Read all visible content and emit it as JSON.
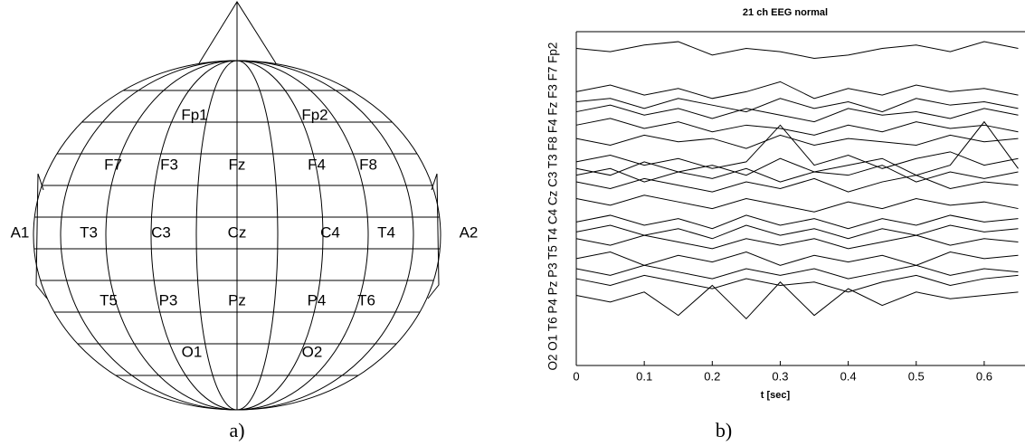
{
  "diagram": {
    "electrodes": [
      "Fp1",
      "Fp2",
      "F7",
      "F3",
      "Fz",
      "F4",
      "F8",
      "A1",
      "T3",
      "C3",
      "Cz",
      "C4",
      "T4",
      "A2",
      "T5",
      "P3",
      "Pz",
      "P4",
      "T6",
      "O1",
      "O2"
    ]
  },
  "captions": [
    "a)",
    "b)"
  ],
  "chart_data": {
    "type": "line",
    "title": "21 ch EEG normal",
    "x_label": "t [sec]",
    "y_label": "O2 O1 T6 P4 Pz P3 T5 T4 C4 Cz C3 T3 F8 F4 Fz F3 F7 Fp2",
    "color": "#000000",
    "x": [
      0,
      0.05,
      0.1,
      0.15,
      0.2,
      0.25,
      0.3,
      0.35,
      0.4,
      0.45,
      0.5,
      0.55,
      0.6,
      0.65
    ],
    "xlim": [
      0,
      0.66
    ],
    "xticks": [
      0,
      0.1,
      0.2,
      0.3,
      0.4,
      0.5,
      0.6
    ],
    "ylim": [
      0,
      100
    ],
    "series": [
      {
        "values": [
          95,
          94,
          96,
          97,
          93,
          95,
          94,
          92,
          93,
          95,
          96,
          94,
          97,
          95
        ]
      },
      {
        "values": [
          82,
          84,
          81,
          83,
          80,
          82,
          85,
          80,
          83,
          81,
          84,
          82,
          83,
          81
        ]
      },
      {
        "values": [
          79,
          80,
          77,
          80,
          78,
          76,
          80,
          77,
          79,
          76,
          80,
          78,
          79,
          77
        ]
      },
      {
        "values": [
          76,
          78,
          75,
          77,
          74,
          77,
          75,
          73,
          77,
          75,
          76,
          74,
          77,
          75
        ]
      },
      {
        "values": [
          72,
          74,
          71,
          73,
          70,
          72,
          71,
          69,
          72,
          70,
          73,
          71,
          72,
          70
        ]
      },
      {
        "values": [
          68,
          66,
          69,
          67,
          68,
          65,
          69,
          66,
          68,
          67,
          66,
          69,
          67,
          68
        ]
      },
      {
        "values": [
          61,
          63,
          60,
          62,
          59,
          61,
          72,
          60,
          63,
          59,
          62,
          64,
          60,
          62
        ]
      },
      {
        "values": [
          59,
          57,
          61,
          58,
          60,
          57,
          62,
          58,
          60,
          62,
          57,
          60,
          73,
          59
        ]
      },
      {
        "values": [
          57,
          59,
          55,
          58,
          56,
          59,
          55,
          58,
          57,
          60,
          55,
          58,
          56,
          58
        ]
      },
      {
        "values": [
          55,
          53,
          56,
          54,
          52,
          55,
          53,
          56,
          52,
          55,
          57,
          53,
          55,
          54
        ]
      },
      {
        "values": [
          50,
          48,
          51,
          49,
          47,
          50,
          48,
          46,
          49,
          47,
          50,
          48,
          49,
          47
        ]
      },
      {
        "values": [
          43,
          45,
          42,
          44,
          41,
          45,
          42,
          44,
          41,
          44,
          42,
          45,
          43,
          44
        ]
      },
      {
        "values": [
          40,
          42,
          39,
          41,
          38,
          42,
          39,
          41,
          38,
          41,
          39,
          42,
          40,
          41
        ]
      },
      {
        "values": [
          38,
          36,
          39,
          37,
          35,
          38,
          36,
          38,
          35,
          37,
          39,
          36,
          38,
          37
        ]
      },
      {
        "values": [
          32,
          34,
          30,
          33,
          31,
          34,
          30,
          33,
          31,
          33,
          30,
          34,
          32,
          33
        ]
      },
      {
        "values": [
          29,
          27,
          30,
          28,
          26,
          29,
          27,
          29,
          26,
          28,
          30,
          27,
          29,
          28
        ]
      },
      {
        "values": [
          26,
          24,
          27,
          25,
          23,
          26,
          24,
          25,
          22,
          25,
          27,
          24,
          26,
          27
        ]
      },
      {
        "values": [
          21,
          19,
          22,
          15,
          24,
          14,
          25,
          15,
          23,
          18,
          22,
          20,
          21,
          22
        ]
      }
    ]
  }
}
